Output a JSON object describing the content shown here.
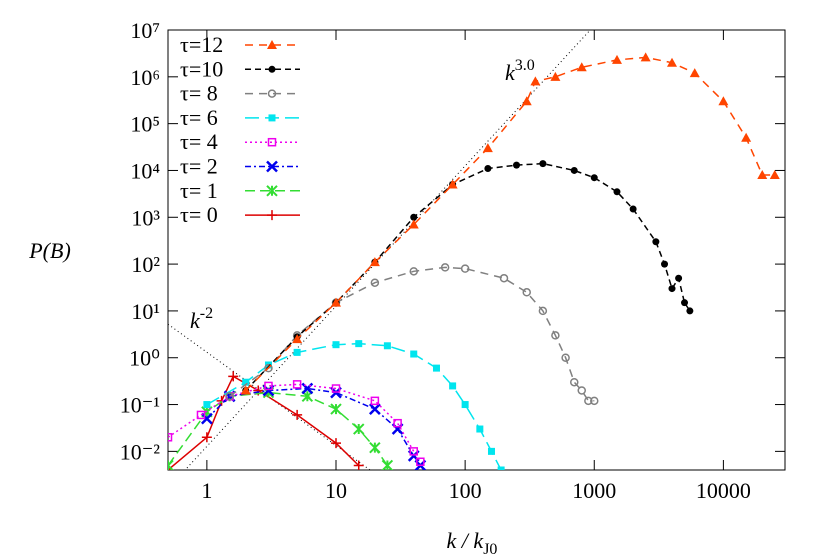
{
  "chart_data": {
    "type": "line",
    "log_x": true,
    "log_y": true,
    "x_label": {
      "text": "k / k",
      "sub": "J0"
    },
    "y_label": "P(B)",
    "xlim": [
      0.5,
      30000
    ],
    "xticks": [
      1,
      10,
      100,
      1000,
      10000
    ],
    "ylim": [
      0.004,
      10000000
    ],
    "yticks": [
      {
        "value": 0.01,
        "label": "10⁻²"
      },
      {
        "value": 0.1,
        "label": "10⁻¹"
      },
      {
        "value": 1,
        "label": "10⁰"
      },
      {
        "value": 10,
        "label": "10¹"
      },
      {
        "value": 100,
        "label": "10²"
      },
      {
        "value": 1000,
        "label": "10³"
      },
      {
        "value": 10000,
        "label": "10⁴"
      },
      {
        "value": 100000,
        "label": "10⁵"
      },
      {
        "value": 1000000,
        "label": "10⁶"
      },
      {
        "value": 10000000,
        "label": "10⁷"
      }
    ],
    "legend": "top-left",
    "series": [
      {
        "name": "τ=12",
        "color": "#ff4500",
        "marker": "triangle",
        "dash": "8,6",
        "x": [
          2,
          5,
          10,
          20,
          40,
          80,
          150,
          300,
          350,
          500,
          800,
          1500,
          2500,
          4000,
          6000,
          10000,
          15000,
          20000,
          25000
        ],
        "values": [
          0.2,
          2.5,
          15,
          110,
          700,
          5000,
          30000,
          300000,
          800000,
          1000000,
          1600000,
          2300000,
          2600000,
          2000000,
          1200000,
          300000,
          50000,
          8000,
          8000
        ]
      },
      {
        "name": "τ=10",
        "color": "#000000",
        "marker": "circle",
        "dash": "6,4",
        "x": [
          2,
          5,
          10,
          20,
          40,
          80,
          150,
          250,
          400,
          700,
          1000,
          1500,
          2000,
          3000,
          3500,
          4000,
          4500,
          5000,
          5500
        ],
        "values": [
          0.2,
          2.8,
          15,
          110,
          1000,
          5000,
          11000,
          13000,
          14000,
          10000,
          7000,
          3500,
          1500,
          300,
          100,
          30,
          50,
          15,
          10
        ]
      },
      {
        "name": "τ= 8",
        "color": "#808080",
        "marker": "open-circle",
        "dash": "8,6",
        "x": [
          1.5,
          3,
          5,
          10,
          20,
          40,
          70,
          100,
          200,
          300,
          400,
          500,
          600,
          700,
          800,
          900,
          1000
        ],
        "values": [
          0.15,
          0.6,
          3,
          15,
          40,
          70,
          85,
          80,
          50,
          25,
          10,
          3,
          1,
          0.3,
          0.2,
          0.12,
          0.12
        ]
      },
      {
        "name": "τ= 6",
        "color": "#00e5ee",
        "marker": "square",
        "dash": "14,6",
        "x": [
          1,
          2,
          3,
          5,
          10,
          15,
          25,
          40,
          60,
          80,
          100,
          130,
          160,
          190
        ],
        "values": [
          0.1,
          0.3,
          0.7,
          1.3,
          1.9,
          2,
          1.8,
          1.2,
          0.6,
          0.25,
          0.1,
          0.03,
          0.01,
          0.004
        ]
      },
      {
        "name": "τ= 4",
        "color": "#ee00ee",
        "marker": "open-square",
        "dash": "2,3",
        "x": [
          0.5,
          0.9,
          1.5,
          3,
          5,
          10,
          20,
          30,
          40,
          45
        ],
        "values": [
          0.02,
          0.06,
          0.15,
          0.25,
          0.27,
          0.22,
          0.12,
          0.04,
          0.01,
          0.006
        ]
      },
      {
        "name": "τ= 2",
        "color": "#0000ee",
        "marker": "x",
        "dash": "6,3,2,3",
        "x": [
          1,
          1.5,
          3,
          6,
          10,
          20,
          30,
          40,
          45
        ],
        "values": [
          0.05,
          0.15,
          0.2,
          0.22,
          0.18,
          0.08,
          0.03,
          0.008,
          0.005
        ]
      },
      {
        "name": "τ= 1",
        "color": "#33dd33",
        "marker": "star",
        "dash": "10,5",
        "x": [
          0.5,
          1,
          1.5,
          3,
          6,
          10,
          15,
          20,
          25
        ],
        "values": [
          0.005,
          0.07,
          0.15,
          0.18,
          0.15,
          0.08,
          0.03,
          0.012,
          0.005
        ]
      },
      {
        "name": "τ= 0",
        "color": "#dd0000",
        "marker": "plus",
        "dash": "none",
        "x": [
          0.5,
          1,
          1.3,
          1.6,
          2.5,
          5,
          10,
          15
        ],
        "values": [
          0.004,
          0.02,
          0.12,
          0.4,
          0.2,
          0.06,
          0.015,
          0.005
        ]
      }
    ],
    "guides": [
      {
        "text": "k",
        "sup": "3.0",
        "x": [
          0.5,
          930
        ],
        "values": [
          0.0016,
          10000000
        ]
      },
      {
        "text": "k",
        "sup": "-2",
        "x": [
          0.5,
          30
        ],
        "values": [
          5.2,
          0.0015
        ]
      }
    ]
  }
}
